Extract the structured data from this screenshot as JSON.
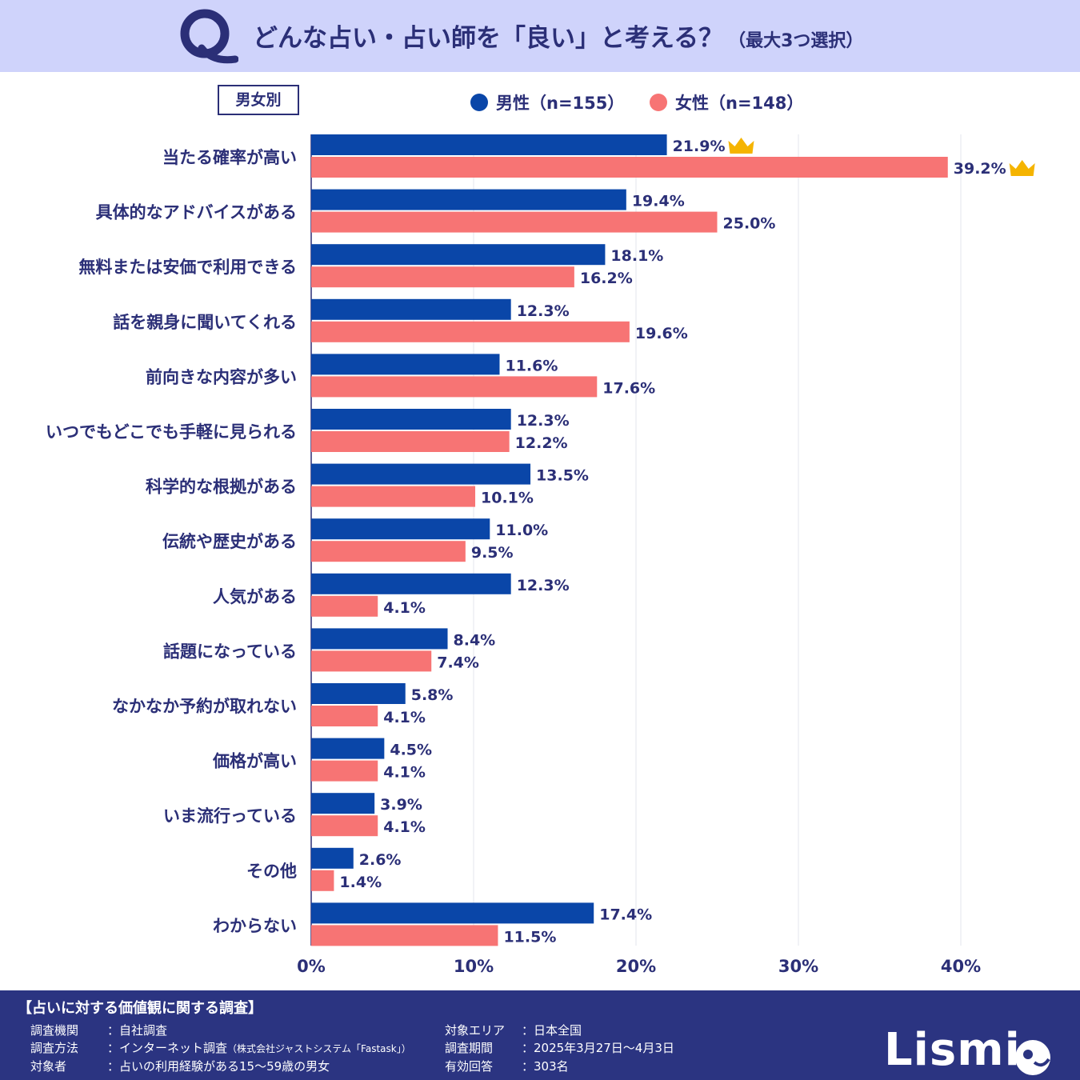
{
  "header": {
    "title": "どんな占い・占い師を「良い」と考える？",
    "title_note": "（最大3つ選択）"
  },
  "segment_label": "男女別",
  "legend": {
    "male": "男性（n=155）",
    "female": "女性（n=148）"
  },
  "colors": {
    "male": "#0a46a8",
    "female": "#f77474",
    "text": "#2b2f77",
    "crown": "#f5b400"
  },
  "chart_data": {
    "type": "bar",
    "orientation": "horizontal",
    "categories": [
      "当たる確率が高い",
      "具体的なアドバイスがある",
      "無料または安価で利用できる",
      "話を親身に聞いてくれる",
      "前向きな内容が多い",
      "いつでもどこでも手軽に見られる",
      "科学的な根拠がある",
      "伝統や歴史がある",
      "人気がある",
      "話題になっている",
      "なかなか予約が取れない",
      "価格が高い",
      "いま流行っている",
      "その他",
      "わからない"
    ],
    "series": [
      {
        "name": "男性（n=155）",
        "values": [
          21.9,
          19.4,
          18.1,
          12.3,
          11.6,
          12.3,
          13.5,
          11.0,
          12.3,
          8.4,
          5.8,
          4.5,
          3.9,
          2.6,
          17.4
        ]
      },
      {
        "name": "女性（n=148）",
        "values": [
          39.2,
          25.0,
          16.2,
          19.6,
          17.6,
          12.2,
          10.1,
          9.5,
          4.1,
          7.4,
          4.1,
          4.1,
          4.1,
          1.4,
          11.5
        ]
      }
    ],
    "value_suffix": "%",
    "xlim": [
      0,
      40
    ],
    "xticks": [
      0,
      10,
      20,
      30,
      40
    ],
    "xtick_labels": [
      "0%",
      "10%",
      "20%",
      "30%",
      "40%"
    ],
    "grid": true,
    "top_marker": "crown"
  },
  "footer": {
    "survey_title": "【占いに対する価値観に関する調査】",
    "left": [
      {
        "label": "調査機関",
        "value": "：自社調査",
        "note": ""
      },
      {
        "label": "調査方法",
        "value": "：インターネット調査",
        "note": "（株式会社ジャストシステム「Fastask」）"
      },
      {
        "label": "対象者",
        "value": "：占いの利用経験がある15～59歳の男女",
        "note": ""
      }
    ],
    "right": [
      {
        "label": "対象エリア",
        "value": "：日本全国"
      },
      {
        "label": "調査期間",
        "value": "：2025年3月27日～4月3日"
      },
      {
        "label": "有効回答",
        "value": "：303名"
      }
    ],
    "logo": "Lismi"
  }
}
